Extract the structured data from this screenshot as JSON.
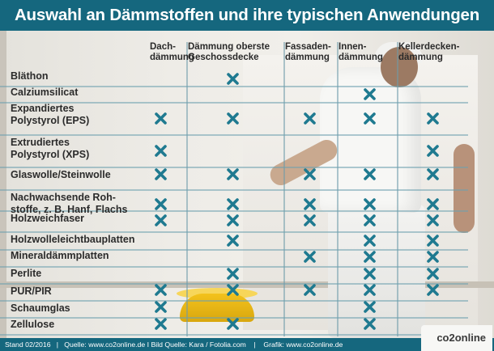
{
  "title": "Auswahl an Dämmstoffen und ihre typischen Anwendungen",
  "columns": [
    "Dach-\ndämmung",
    "Dämmung oberste\nGeschossdecke",
    "Fassaden-\ndämmung",
    "Innen-\ndämmung",
    "Kellerdecken-\ndämmung"
  ],
  "rows": [
    {
      "label": "Bläthon",
      "marks": [
        0,
        1,
        0,
        0,
        0
      ]
    },
    {
      "label": "Calziumsilicat",
      "marks": [
        0,
        0,
        0,
        1,
        0
      ]
    },
    {
      "label": "Expandiertes\nPolystyrol (EPS)",
      "marks": [
        1,
        1,
        1,
        1,
        1
      ]
    },
    {
      "label": "Extrudiertes\nPolystyrol (XPS)",
      "marks": [
        1,
        0,
        0,
        0,
        1
      ]
    },
    {
      "label": "Glaswolle/Steinwolle",
      "marks": [
        1,
        1,
        1,
        1,
        1
      ]
    },
    {
      "label": "Nachwachsende Roh-\nstoffe, z. B. Hanf, Flachs",
      "marks": [
        1,
        1,
        1,
        1,
        1
      ]
    },
    {
      "label": "Holzweichfaser",
      "marks": [
        1,
        1,
        1,
        1,
        1
      ]
    },
    {
      "label": "Holzwolleleichtbauplatten",
      "marks": [
        0,
        1,
        0,
        1,
        1
      ]
    },
    {
      "label": "Mineraldämmplatten",
      "marks": [
        0,
        0,
        1,
        1,
        1
      ]
    },
    {
      "label": "Perlite",
      "marks": [
        0,
        1,
        0,
        1,
        1
      ]
    },
    {
      "label": "PUR/PIR",
      "marks": [
        1,
        1,
        1,
        1,
        1
      ]
    },
    {
      "label": "Schaumglas",
      "marks": [
        1,
        0,
        0,
        1,
        0
      ]
    },
    {
      "label": "Zellulose",
      "marks": [
        1,
        1,
        0,
        1,
        0
      ]
    }
  ],
  "footer": {
    "text": "Stand 02/2016   |   Quelle: www.co2online.de I Bild Quelle: Kara / Fotolia.com    |    Grafik: www.co2online.de",
    "logo": "co2online"
  },
  "colors": {
    "header": "#15677e",
    "mark": "#1f7a90",
    "text": "#2b2b2b"
  },
  "icons": {
    "mark": "x-mark-icon"
  }
}
